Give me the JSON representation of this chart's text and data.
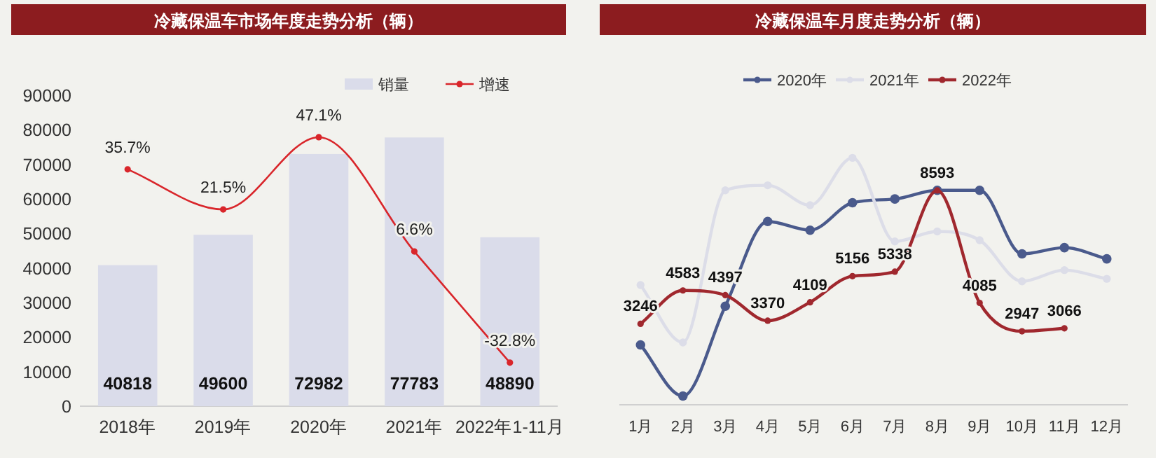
{
  "chart_data": [
    {
      "type": "bar",
      "title": "冷藏保温车市场年度走势分析（辆）",
      "categories": [
        "2018年",
        "2019年",
        "2020年",
        "2021年",
        "2022年1-11月"
      ],
      "ylim": [
        0,
        90000
      ],
      "yticks": [
        0,
        10000,
        20000,
        30000,
        40000,
        50000,
        60000,
        70000,
        80000,
        90000
      ],
      "legend": "top right",
      "series": [
        {
          "name": "销量",
          "color": "#dadcea",
          "values": [
            40818,
            49600,
            72982,
            77783,
            48890
          ],
          "value_labels": [
            "40818",
            "49600",
            "72982",
            "77783",
            "48890"
          ]
        },
        {
          "name": "增速",
          "type": "line",
          "axis": "y2",
          "color": "#d9262b",
          "marker": "circle",
          "values": [
            35.7,
            21.5,
            47.1,
            6.6,
            -32.8
          ],
          "value_labels": [
            "35.7%",
            "21.5%",
            "47.1%",
            "6.6%",
            "-32.8%"
          ]
        }
      ]
    },
    {
      "type": "line",
      "title": "冷藏保温车月度走势分析（辆）",
      "categories": [
        "1月",
        "2月",
        "3月",
        "4月",
        "5月",
        "6月",
        "7月",
        "8月",
        "9月",
        "10月",
        "11月",
        "12月"
      ],
      "legend": "top",
      "marker": "circle",
      "series": [
        {
          "name": "2020年",
          "color": "#4a5a8c",
          "values": [
            2400,
            350,
            3950,
            7350,
            7000,
            8100,
            8250,
            8600,
            8600,
            6050,
            6300,
            5850
          ]
        },
        {
          "name": "2021年",
          "color": "#dcdde8",
          "values": [
            4800,
            2500,
            8600,
            8800,
            8000,
            9900,
            6550,
            6950,
            6600,
            4950,
            5400,
            5050
          ]
        },
        {
          "name": "2022年",
          "color": "#a0282e",
          "values": [
            3246,
            4583,
            4397,
            3370,
            4109,
            5156,
            5338,
            8593,
            4085,
            2947,
            3066,
            null
          ],
          "value_labels": [
            "3246",
            "4583",
            "4397",
            "3370",
            "4109",
            "5156",
            "5338",
            "8593",
            "4085",
            "2947",
            "3066",
            null
          ]
        }
      ]
    }
  ]
}
